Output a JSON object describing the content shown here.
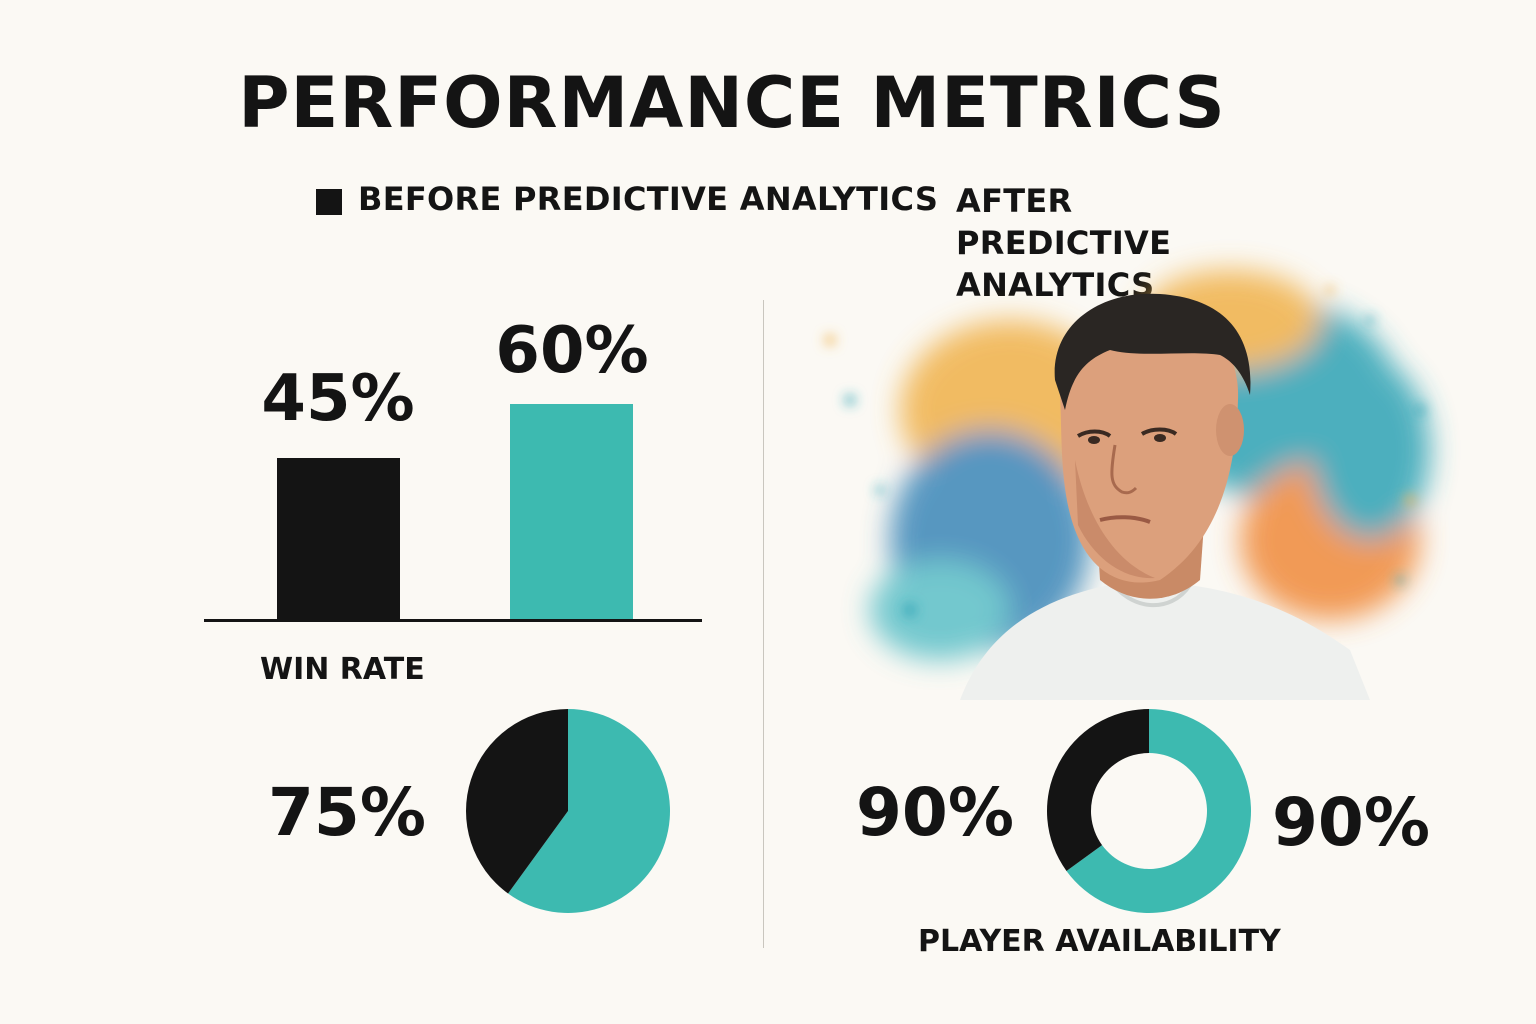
{
  "title": "PERFORMANCE METRICS",
  "legend": {
    "before_label": "BEFORE PREDICTIVE ANALYTICS",
    "after_label": "AFTER PREDICTIVE ANALYTICS"
  },
  "colors": {
    "before": "#141414",
    "after": "#3dbab0",
    "background": "#fbf9f4"
  },
  "chart_data": [
    {
      "type": "bar",
      "xlabel": "WIN RATE",
      "categories": [
        "BEFORE PREDICTIVE ANALYTICS",
        "AFTER PREDICTIVE ANALYTICS"
      ],
      "values": [
        45,
        60
      ],
      "value_labels": [
        "45%",
        "60%"
      ]
    },
    {
      "type": "pie",
      "value_label": "75%",
      "slices": [
        {
          "label": "BEFORE PREDICTIVE ANALYTICS",
          "value": 40
        },
        {
          "label": "AFTER PREDICTIVE ANALYTICS",
          "value": 60
        }
      ]
    },
    {
      "type": "pie",
      "title": "PLAYER AVAILABILITY",
      "value_labels": [
        "90%",
        "90%"
      ],
      "slices": [
        {
          "label": "BEFORE PREDICTIVE ANALYTICS",
          "value": 35
        },
        {
          "label": "AFTER PREDICTIVE ANALYTICS",
          "value": 65
        }
      ]
    }
  ],
  "illustration": {
    "subject": "watercolor-player-portrait"
  }
}
